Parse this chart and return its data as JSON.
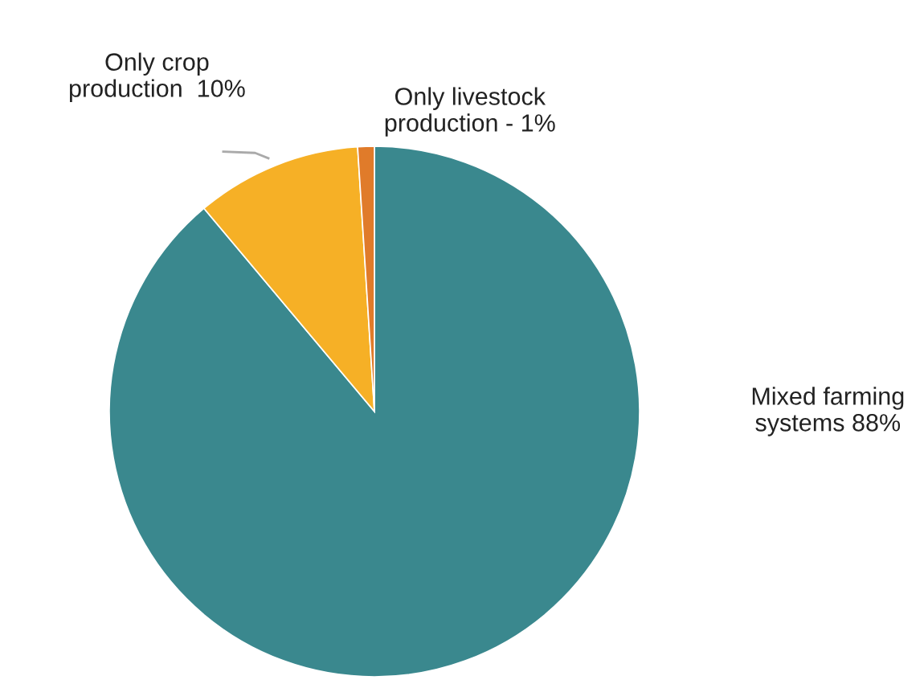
{
  "chart_data": {
    "type": "pie",
    "categories": [
      "Mixed farming\nsystems 88%",
      "Only crop\nproduction  10%",
      "Only livestock\nproduction - 1%"
    ],
    "values": [
      88,
      10,
      1
    ],
    "colors": [
      "#3a888e",
      "#f6b026",
      "#e07b2a"
    ],
    "legend": false
  }
}
